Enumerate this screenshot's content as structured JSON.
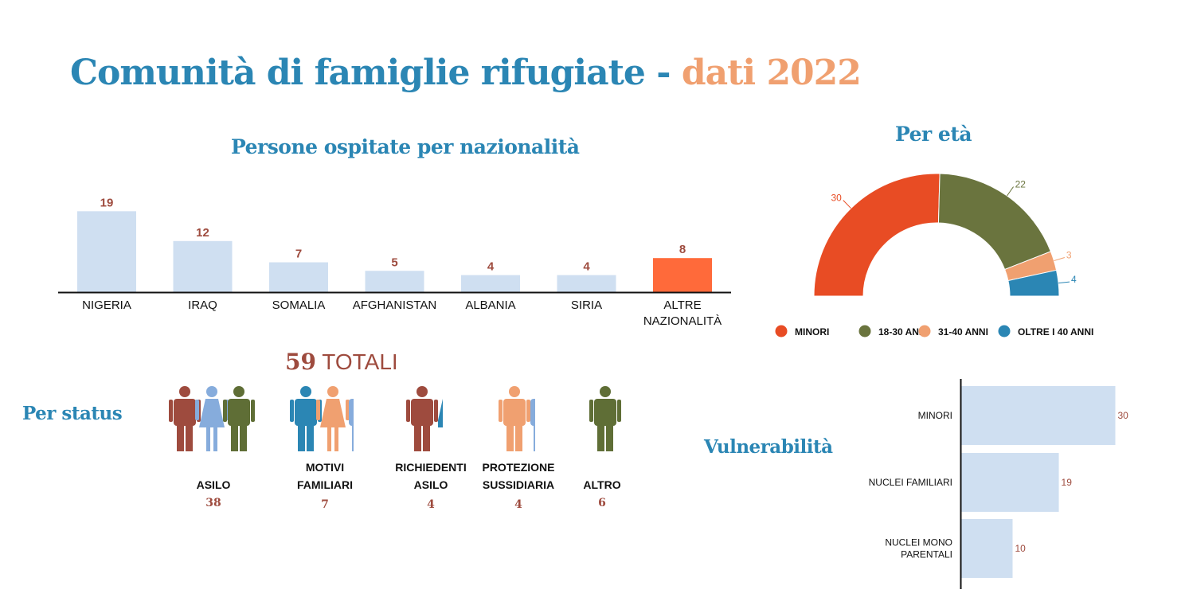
{
  "title": {
    "main": "Comunità di famiglie rifugiate - ",
    "accent": "dati 2022"
  },
  "colors": {
    "title_blue": "#2b86b4",
    "accent_orange": "#f0a070",
    "bar_light": "#cfdff1",
    "bar_highlight": "#ff6a3a",
    "count_red": "#9e4b3e",
    "minori": "#e84c24",
    "adulti_18_30": "#6a743e",
    "adulti_31_40": "#f0a070",
    "oltre_40": "#2b86b4",
    "person_red": "#9e4b3e",
    "person_lightblue": "#86acdc",
    "person_green": "#5f6e36",
    "person_blue": "#2b86b4",
    "person_orange": "#f0a070"
  },
  "totals": {
    "number": "59",
    "label": "TOTALI"
  },
  "status_title": "Per status",
  "vulnerabilita_title": "Vulnerabilità",
  "chart_data": [
    {
      "id": "nazionalita",
      "type": "bar",
      "title": "Persone ospitate per nazionalità",
      "categories": [
        "NIGERIA",
        "IRAQ",
        "SOMALIA",
        "AFGHANISTAN",
        "ALBANIA",
        "SIRIA",
        "ALTRE NAZIONALITÀ"
      ],
      "category_lines": [
        [
          "NIGERIA"
        ],
        [
          "IRAQ"
        ],
        [
          "SOMALIA"
        ],
        [
          "AFGHANISTAN"
        ],
        [
          "ALBANIA"
        ],
        [
          "SIRIA"
        ],
        [
          "ALTRE",
          "NAZIONALITÀ"
        ]
      ],
      "values": [
        19,
        12,
        7,
        5,
        4,
        4,
        8
      ],
      "highlight_index": 6
    },
    {
      "id": "eta",
      "type": "pie",
      "subtype": "semi-donut",
      "title": "Per età",
      "labels": [
        "MINORI",
        "18-30 ANNI",
        "31-40 ANNI",
        "OLTRE I 40 ANNI"
      ],
      "values": [
        30,
        22,
        3,
        4
      ],
      "legend": "bottom"
    },
    {
      "id": "vulnerabilita",
      "type": "bar",
      "orientation": "horizontal",
      "categories": [
        "MINORI",
        "NUCLEI FAMILIARI",
        "NUCLEI MONO PARENTALI"
      ],
      "category_lines": [
        [
          "MINORI"
        ],
        [
          "NUCLEI FAMILIARI"
        ],
        [
          "NUCLEI MONO",
          "PARENTALI"
        ]
      ],
      "values": [
        30,
        19,
        10
      ]
    },
    {
      "id": "status",
      "type": "pictograph",
      "categories": [
        "ASILO",
        "MOTIVI FAMILIARI",
        "RICHIEDENTI ASILO",
        "PROTEZIONE SUSSIDIARIA",
        "ALTRO"
      ],
      "category_lines": [
        [
          "ASILO"
        ],
        [
          "MOTIVI",
          "FAMILIARI"
        ],
        [
          "RICHIEDENTI",
          "ASILO"
        ],
        [
          "PROTEZIONE",
          "SUSSIDIARIA"
        ],
        [
          "ALTRO"
        ]
      ],
      "values": [
        38,
        7,
        4,
        4,
        6
      ],
      "icons": [
        [
          [
            "man",
            "person_red"
          ],
          [
            "woman",
            "person_lightblue"
          ],
          [
            "man",
            "person_green"
          ]
        ],
        [
          [
            "man",
            "person_blue"
          ],
          [
            "woman",
            "person_orange"
          ],
          [
            "man-partial",
            "person_lightblue"
          ]
        ],
        [
          [
            "man",
            "person_red"
          ],
          [
            "woman-partial",
            "person_blue"
          ]
        ],
        [
          [
            "man",
            "person_orange"
          ],
          [
            "man-partial",
            "person_lightblue"
          ]
        ],
        [
          [
            "man",
            "person_green"
          ]
        ]
      ]
    }
  ]
}
